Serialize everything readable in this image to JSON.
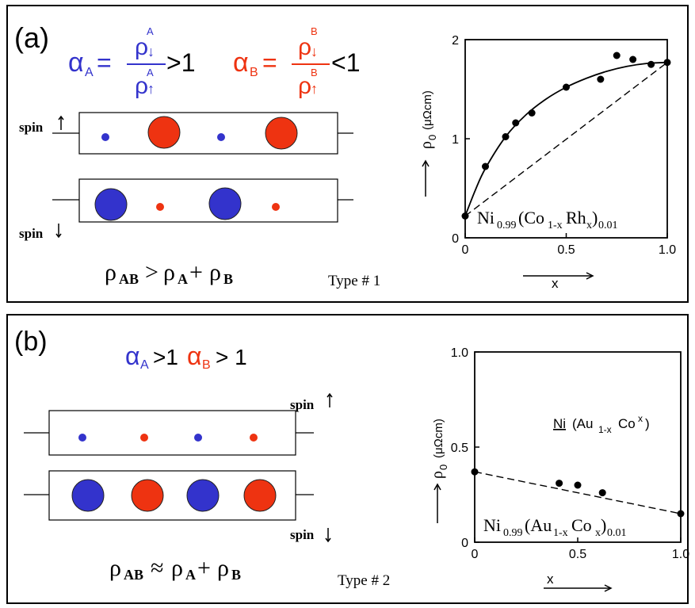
{
  "colors": {
    "blue": "#3333cc",
    "red": "#ee3311",
    "black": "#000000"
  },
  "panel_a": {
    "label": "(a)",
    "alpha_sym": "α",
    "sub_a": "A",
    "sub_b": "B",
    "rho": "ρ",
    "down_arrow": "↓",
    "up_arrow": "↑",
    "gt_one": ">1",
    "lt_one": "<1",
    "equals": "=",
    "spin_up": "spin",
    "spin_down": "spin",
    "inequality_rho_ab": "ρ",
    "inequality_sub_ab": "AB",
    "inequality_op": ">",
    "inequality_rho_a": "ρ",
    "inequality_sub_a": "A",
    "inequality_plus": "+",
    "inequality_rho_b": "ρ",
    "inequality_sub_b": "B",
    "type_label": "Type # 1",
    "chart_ylabel_rho": "ρ",
    "chart_ylabel_sub": "0",
    "chart_ylabel_units": "(μΩcm)",
    "chart_xlabel": "x",
    "chart_compound_ni": "Ni",
    "chart_compound_s1": "0.99",
    "chart_compound_mid": "(Co",
    "chart_compound_s2": "1-x",
    "chart_compound_rh": "Rh",
    "chart_compound_s3": "x",
    "chart_compound_close": ")",
    "chart_compound_s4": "0.01"
  },
  "panel_b": {
    "label": "(b)",
    "alpha_sym": "α",
    "sub_a": "A",
    "sub_b": "B",
    "gt_one_a": ">1",
    "gt_one_b": "> 1",
    "spin_up": "spin",
    "spin_down": "spin",
    "approx_rho_ab": "ρ",
    "approx_sub_ab": "AB",
    "approx_op": "≈",
    "approx_rho_a": "ρ",
    "approx_sub_a": "A",
    "approx_plus": "+",
    "approx_rho_b": "ρ",
    "approx_sub_b": "B",
    "type_label": "Type # 2",
    "chart_ylabel_rho": "ρ",
    "chart_ylabel_sub": "0",
    "chart_ylabel_units": "(μΩcm)",
    "chart_xlabel": "x",
    "chart_inset_ni": "Ni",
    "chart_inset_au": "(Au",
    "chart_inset_s1": "1-x",
    "chart_inset_co": "Co",
    "chart_inset_s2": "x",
    "chart_inset_close": ")",
    "chart_compound_ni": "Ni",
    "chart_compound_s1": "0.99",
    "chart_compound_mid": "(Au",
    "chart_compound_s2": "1-x",
    "chart_compound_co": "Co",
    "chart_compound_s3": "x",
    "chart_compound_close": ")",
    "chart_compound_s4": "0.01"
  },
  "chart_data": [
    {
      "type": "scatter",
      "title": "",
      "xlabel": "x",
      "ylabel": "ρ0 (μΩcm)",
      "xlim": [
        0,
        1.0
      ],
      "ylim": [
        0,
        2
      ],
      "x_ticks": [
        "0",
        "0.5",
        "1.0"
      ],
      "y_ticks": [
        "0",
        "1",
        "2"
      ],
      "points": [
        {
          "x": 0.0,
          "y": 0.22
        },
        {
          "x": 0.1,
          "y": 0.72
        },
        {
          "x": 0.2,
          "y": 1.02
        },
        {
          "x": 0.25,
          "y": 1.16
        },
        {
          "x": 0.33,
          "y": 1.26
        },
        {
          "x": 0.5,
          "y": 1.52
        },
        {
          "x": 0.67,
          "y": 1.6
        },
        {
          "x": 0.75,
          "y": 1.84
        },
        {
          "x": 0.83,
          "y": 1.8
        },
        {
          "x": 0.92,
          "y": 1.75
        },
        {
          "x": 1.0,
          "y": 1.77
        }
      ],
      "fit_curve": [
        {
          "x": 0.0,
          "y": 0.22
        },
        {
          "x": 0.05,
          "y": 0.48
        },
        {
          "x": 0.1,
          "y": 0.7
        },
        {
          "x": 0.2,
          "y": 1.02
        },
        {
          "x": 0.3,
          "y": 1.24
        },
        {
          "x": 0.4,
          "y": 1.4
        },
        {
          "x": 0.5,
          "y": 1.52
        },
        {
          "x": 0.6,
          "y": 1.61
        },
        {
          "x": 0.7,
          "y": 1.68
        },
        {
          "x": 0.8,
          "y": 1.73
        },
        {
          "x": 0.9,
          "y": 1.76
        },
        {
          "x": 1.0,
          "y": 1.77
        }
      ],
      "dashed_line": [
        {
          "x": 0.0,
          "y": 0.22
        },
        {
          "x": 1.0,
          "y": 1.77
        }
      ]
    },
    {
      "type": "scatter",
      "title": "",
      "xlabel": "x",
      "ylabel": "ρ0 (μΩcm)",
      "xlim": [
        0,
        1.0
      ],
      "ylim": [
        0,
        1.0
      ],
      "x_ticks": [
        "0",
        "0.5",
        "1.0"
      ],
      "y_ticks": [
        "0",
        "0.5",
        "1.0"
      ],
      "points": [
        {
          "x": 0.0,
          "y": 0.37
        },
        {
          "x": 0.41,
          "y": 0.31
        },
        {
          "x": 0.5,
          "y": 0.3
        },
        {
          "x": 0.62,
          "y": 0.26
        },
        {
          "x": 1.0,
          "y": 0.15
        }
      ],
      "dashed_line": [
        {
          "x": 0.0,
          "y": 0.37
        },
        {
          "x": 1.0,
          "y": 0.15
        }
      ]
    }
  ]
}
